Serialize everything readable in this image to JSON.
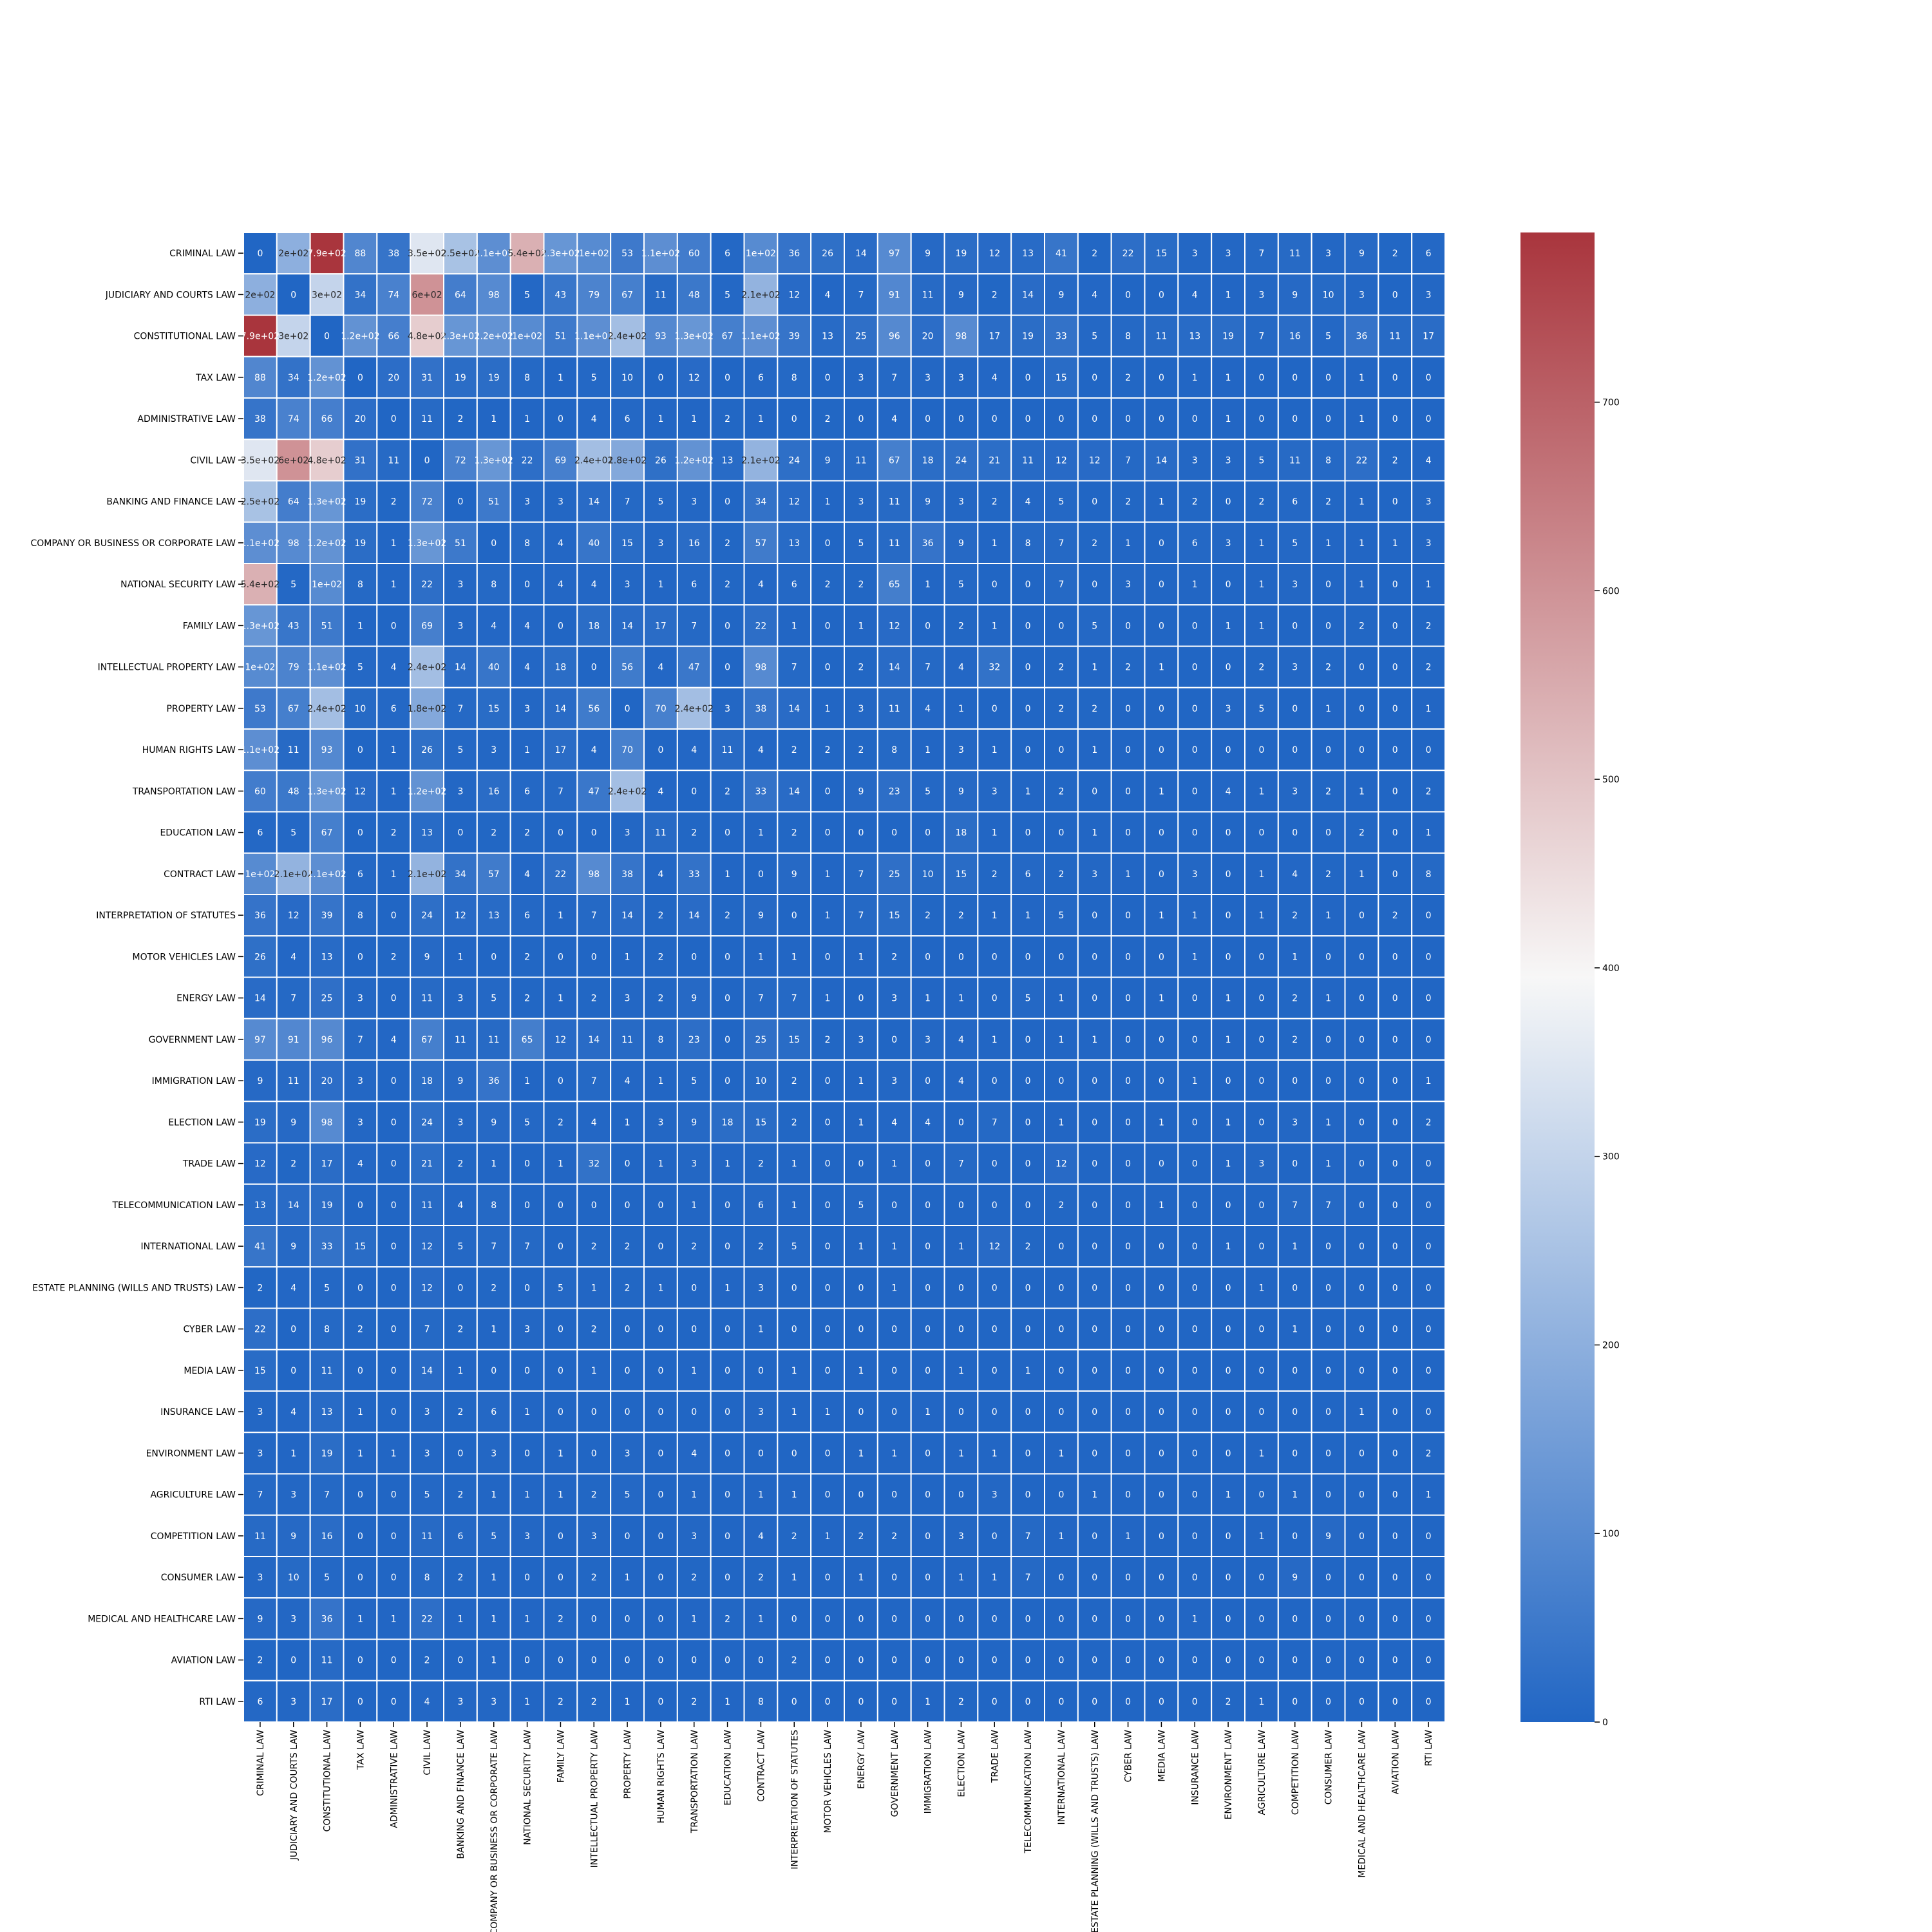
{
  "chart_data": {
    "type": "heatmap",
    "title": "",
    "xlabel": "",
    "ylabel": "",
    "labels": [
      "CRIMINAL LAW",
      "JUDICIARY AND COURTS LAW",
      "CONSTITUTIONAL LAW",
      "TAX LAW",
      "ADMINISTRATIVE LAW",
      "CIVIL LAW",
      "BANKING AND FINANCE LAW",
      "COMPANY OR BUSINESS OR CORPORATE LAW",
      "NATIONAL SECURITY LAW",
      "FAMILY LAW",
      "INTELLECTUAL PROPERTY LAW",
      "PROPERTY LAW",
      "HUMAN RIGHTS LAW",
      "TRANSPORTATION LAW",
      "EDUCATION LAW",
      "CONTRACT LAW",
      "INTERPRETATION OF STATUTES",
      "MOTOR VEHICLES LAW",
      "ENERGY LAW",
      "GOVERNMENT LAW",
      "IMMIGRATION LAW",
      "ELECTION LAW",
      "TRADE LAW",
      "TELECOMMUNICATION LAW",
      "INTERNATIONAL LAW",
      "ESTATE PLANNING (WILLS AND TRUSTS) LAW",
      "CYBER LAW",
      "MEDIA LAW",
      "INSURANCE LAW",
      "ENVIRONMENT LAW",
      "AGRICULTURE LAW",
      "COMPETITION LAW",
      "CONSUMER LAW",
      "MEDICAL AND HEALTHCARE LAW",
      "AVIATION LAW",
      "RTI LAW"
    ],
    "values": [
      [
        0,
        200,
        790,
        88,
        38,
        350,
        250,
        110,
        540,
        130,
        100,
        53,
        110,
        60,
        6,
        100,
        36,
        26,
        14,
        97,
        9,
        19,
        12,
        13,
        41,
        2,
        22,
        15,
        3,
        3,
        7,
        11,
        3,
        9,
        2,
        6
      ],
      [
        200,
        0,
        300,
        34,
        74,
        600,
        64,
        98,
        5,
        43,
        79,
        67,
        11,
        48,
        5,
        210,
        12,
        4,
        7,
        91,
        11,
        9,
        2,
        14,
        9,
        4,
        0,
        0,
        4,
        1,
        3,
        9,
        10,
        3,
        0,
        3
      ],
      [
        790,
        300,
        0,
        120,
        66,
        480,
        130,
        120,
        100,
        51,
        110,
        240,
        93,
        130,
        67,
        110,
        39,
        13,
        25,
        96,
        20,
        98,
        17,
        19,
        33,
        5,
        8,
        11,
        13,
        19,
        7,
        16,
        5,
        36,
        11,
        17
      ],
      [
        88,
        34,
        120,
        0,
        20,
        31,
        19,
        19,
        8,
        1,
        5,
        10,
        0,
        12,
        0,
        6,
        8,
        0,
        3,
        7,
        3,
        3,
        4,
        0,
        15,
        0,
        2,
        0,
        1,
        1,
        0,
        0,
        0,
        1,
        0,
        0
      ],
      [
        38,
        74,
        66,
        20,
        0,
        11,
        2,
        1,
        1,
        0,
        4,
        6,
        1,
        1,
        2,
        1,
        0,
        2,
        0,
        4,
        0,
        0,
        0,
        0,
        0,
        0,
        0,
        0,
        0,
        1,
        0,
        0,
        0,
        1,
        0,
        0
      ],
      [
        350,
        600,
        480,
        31,
        11,
        0,
        72,
        130,
        22,
        69,
        240,
        180,
        26,
        120,
        13,
        210,
        24,
        9,
        11,
        67,
        18,
        24,
        21,
        11,
        12,
        12,
        7,
        14,
        3,
        3,
        5,
        11,
        8,
        22,
        2,
        4
      ],
      [
        250,
        64,
        130,
        19,
        2,
        72,
        0,
        51,
        3,
        3,
        14,
        7,
        5,
        3,
        0,
        34,
        12,
        1,
        3,
        11,
        9,
        3,
        2,
        4,
        5,
        0,
        2,
        1,
        2,
        0,
        2,
        6,
        2,
        1,
        0,
        3
      ],
      [
        110,
        98,
        120,
        19,
        1,
        130,
        51,
        0,
        8,
        4,
        40,
        15,
        3,
        16,
        2,
        57,
        13,
        0,
        5,
        11,
        36,
        9,
        1,
        8,
        7,
        2,
        1,
        0,
        6,
        3,
        1,
        5,
        1,
        1,
        1,
        3
      ],
      [
        540,
        5,
        100,
        8,
        1,
        22,
        3,
        8,
        0,
        4,
        4,
        3,
        1,
        6,
        2,
        4,
        6,
        2,
        2,
        65,
        1,
        5,
        0,
        0,
        7,
        0,
        3,
        0,
        1,
        0,
        1,
        3,
        0,
        1,
        0,
        1
      ],
      [
        130,
        43,
        51,
        1,
        0,
        69,
        3,
        4,
        4,
        0,
        18,
        14,
        17,
        7,
        0,
        22,
        1,
        0,
        1,
        12,
        0,
        2,
        1,
        0,
        0,
        5,
        0,
        0,
        0,
        1,
        1,
        0,
        0,
        2,
        0,
        2
      ],
      [
        100,
        79,
        110,
        5,
        4,
        240,
        14,
        40,
        4,
        18,
        0,
        56,
        4,
        47,
        0,
        98,
        7,
        0,
        2,
        14,
        7,
        4,
        32,
        0,
        2,
        1,
        2,
        1,
        0,
        0,
        2,
        3,
        2,
        0,
        0,
        2
      ],
      [
        53,
        67,
        240,
        10,
        6,
        180,
        7,
        15,
        3,
        14,
        56,
        0,
        70,
        240,
        3,
        38,
        14,
        1,
        3,
        11,
        4,
        1,
        0,
        0,
        2,
        2,
        0,
        0,
        0,
        3,
        5,
        0,
        1,
        0,
        0,
        1
      ],
      [
        110,
        11,
        93,
        0,
        1,
        26,
        5,
        3,
        1,
        17,
        4,
        70,
        0,
        4,
        11,
        4,
        2,
        2,
        2,
        8,
        1,
        3,
        1,
        0,
        0,
        1,
        0,
        0,
        0,
        0,
        0,
        0,
        0,
        0,
        0,
        0
      ],
      [
        60,
        48,
        130,
        12,
        1,
        120,
        3,
        16,
        6,
        7,
        47,
        240,
        4,
        0,
        2,
        33,
        14,
        0,
        9,
        23,
        5,
        9,
        3,
        1,
        2,
        0,
        0,
        1,
        0,
        4,
        1,
        3,
        2,
        1,
        0,
        2
      ],
      [
        6,
        5,
        67,
        0,
        2,
        13,
        0,
        2,
        2,
        0,
        0,
        3,
        11,
        2,
        0,
        1,
        2,
        0,
        0,
        0,
        0,
        18,
        1,
        0,
        0,
        1,
        0,
        0,
        0,
        0,
        0,
        0,
        0,
        2,
        0,
        1
      ],
      [
        100,
        210,
        110,
        6,
        1,
        210,
        34,
        57,
        4,
        22,
        98,
        38,
        4,
        33,
        1,
        0,
        9,
        1,
        7,
        25,
        10,
        15,
        2,
        6,
        2,
        3,
        1,
        0,
        3,
        0,
        1,
        4,
        2,
        1,
        0,
        8
      ],
      [
        36,
        12,
        39,
        8,
        0,
        24,
        12,
        13,
        6,
        1,
        7,
        14,
        2,
        14,
        2,
        9,
        0,
        1,
        7,
        15,
        2,
        2,
        1,
        1,
        5,
        0,
        0,
        1,
        1,
        0,
        1,
        2,
        1,
        0,
        2,
        0
      ],
      [
        26,
        4,
        13,
        0,
        2,
        9,
        1,
        0,
        2,
        0,
        0,
        1,
        2,
        0,
        0,
        1,
        1,
        0,
        1,
        2,
        0,
        0,
        0,
        0,
        0,
        0,
        0,
        0,
        1,
        0,
        0,
        1,
        0,
        0,
        0,
        0
      ],
      [
        14,
        7,
        25,
        3,
        0,
        11,
        3,
        5,
        2,
        1,
        2,
        3,
        2,
        9,
        0,
        7,
        7,
        1,
        0,
        3,
        1,
        1,
        0,
        5,
        1,
        0,
        0,
        1,
        0,
        1,
        0,
        2,
        1,
        0,
        0,
        0
      ],
      [
        97,
        91,
        96,
        7,
        4,
        67,
        11,
        11,
        65,
        12,
        14,
        11,
        8,
        23,
        0,
        25,
        15,
        2,
        3,
        0,
        3,
        4,
        1,
        0,
        1,
        1,
        0,
        0,
        0,
        1,
        0,
        2,
        0,
        0,
        0,
        0
      ],
      [
        9,
        11,
        20,
        3,
        0,
        18,
        9,
        36,
        1,
        0,
        7,
        4,
        1,
        5,
        0,
        10,
        2,
        0,
        1,
        3,
        0,
        4,
        0,
        0,
        0,
        0,
        0,
        0,
        1,
        0,
        0,
        0,
        0,
        0,
        0,
        1
      ],
      [
        19,
        9,
        98,
        3,
        0,
        24,
        3,
        9,
        5,
        2,
        4,
        1,
        3,
        9,
        18,
        15,
        2,
        0,
        1,
        4,
        4,
        0,
        7,
        0,
        1,
        0,
        0,
        1,
        0,
        1,
        0,
        3,
        1,
        0,
        0,
        2
      ],
      [
        12,
        2,
        17,
        4,
        0,
        21,
        2,
        1,
        0,
        1,
        32,
        0,
        1,
        3,
        1,
        2,
        1,
        0,
        0,
        1,
        0,
        7,
        0,
        0,
        12,
        0,
        0,
        0,
        0,
        1,
        3,
        0,
        1,
        0,
        0,
        0
      ],
      [
        13,
        14,
        19,
        0,
        0,
        11,
        4,
        8,
        0,
        0,
        0,
        0,
        0,
        1,
        0,
        6,
        1,
        0,
        5,
        0,
        0,
        0,
        0,
        0,
        2,
        0,
        0,
        1,
        0,
        0,
        0,
        7,
        7,
        0,
        0,
        0
      ],
      [
        41,
        9,
        33,
        15,
        0,
        12,
        5,
        7,
        7,
        0,
        2,
        2,
        0,
        2,
        0,
        2,
        5,
        0,
        1,
        1,
        0,
        1,
        12,
        2,
        0,
        0,
        0,
        0,
        0,
        1,
        0,
        1,
        0,
        0,
        0,
        0
      ],
      [
        2,
        4,
        5,
        0,
        0,
        12,
        0,
        2,
        0,
        5,
        1,
        2,
        1,
        0,
        1,
        3,
        0,
        0,
        0,
        1,
        0,
        0,
        0,
        0,
        0,
        0,
        0,
        0,
        0,
        0,
        1,
        0,
        0,
        0,
        0,
        0
      ],
      [
        22,
        0,
        8,
        2,
        0,
        7,
        2,
        1,
        3,
        0,
        2,
        0,
        0,
        0,
        0,
        1,
        0,
        0,
        0,
        0,
        0,
        0,
        0,
        0,
        0,
        0,
        0,
        0,
        0,
        0,
        0,
        1,
        0,
        0,
        0,
        0
      ],
      [
        15,
        0,
        11,
        0,
        0,
        14,
        1,
        0,
        0,
        0,
        1,
        0,
        0,
        1,
        0,
        0,
        1,
        0,
        1,
        0,
        0,
        1,
        0,
        1,
        0,
        0,
        0,
        0,
        0,
        0,
        0,
        0,
        0,
        0,
        0,
        0
      ],
      [
        3,
        4,
        13,
        1,
        0,
        3,
        2,
        6,
        1,
        0,
        0,
        0,
        0,
        0,
        0,
        3,
        1,
        1,
        0,
        0,
        1,
        0,
        0,
        0,
        0,
        0,
        0,
        0,
        0,
        0,
        0,
        0,
        0,
        1,
        0,
        0
      ],
      [
        3,
        1,
        19,
        1,
        1,
        3,
        0,
        3,
        0,
        1,
        0,
        3,
        0,
        4,
        0,
        0,
        0,
        0,
        1,
        1,
        0,
        1,
        1,
        0,
        1,
        0,
        0,
        0,
        0,
        0,
        1,
        0,
        0,
        0,
        0,
        2
      ],
      [
        7,
        3,
        7,
        0,
        0,
        5,
        2,
        1,
        1,
        1,
        2,
        5,
        0,
        1,
        0,
        1,
        1,
        0,
        0,
        0,
        0,
        0,
        3,
        0,
        0,
        1,
        0,
        0,
        0,
        1,
        0,
        1,
        0,
        0,
        0,
        1
      ],
      [
        11,
        9,
        16,
        0,
        0,
        11,
        6,
        5,
        3,
        0,
        3,
        0,
        0,
        3,
        0,
        4,
        2,
        1,
        2,
        2,
        0,
        3,
        0,
        7,
        1,
        0,
        1,
        0,
        0,
        0,
        1,
        0,
        9,
        0,
        0,
        0
      ],
      [
        3,
        10,
        5,
        0,
        0,
        8,
        2,
        1,
        0,
        0,
        2,
        1,
        0,
        2,
        0,
        2,
        1,
        0,
        1,
        0,
        0,
        1,
        1,
        7,
        0,
        0,
        0,
        0,
        0,
        0,
        0,
        9,
        0,
        0,
        0,
        0
      ],
      [
        9,
        3,
        36,
        1,
        1,
        22,
        1,
        1,
        1,
        2,
        0,
        0,
        0,
        1,
        2,
        1,
        0,
        0,
        0,
        0,
        0,
        0,
        0,
        0,
        0,
        0,
        0,
        0,
        1,
        0,
        0,
        0,
        0,
        0,
        0,
        0
      ],
      [
        2,
        0,
        11,
        0,
        0,
        2,
        0,
        1,
        0,
        0,
        0,
        0,
        0,
        0,
        0,
        0,
        2,
        0,
        0,
        0,
        0,
        0,
        0,
        0,
        0,
        0,
        0,
        0,
        0,
        0,
        0,
        0,
        0,
        0,
        0,
        0
      ],
      [
        6,
        3,
        17,
        0,
        0,
        4,
        3,
        3,
        1,
        2,
        2,
        1,
        0,
        2,
        1,
        8,
        0,
        0,
        0,
        0,
        1,
        2,
        0,
        0,
        0,
        0,
        0,
        0,
        0,
        2,
        1,
        0,
        0,
        0,
        0,
        0
      ]
    ],
    "vmin": 0,
    "vmax": 790,
    "colormap": {
      "low": "#2166c4",
      "mid": "#f7f7f7",
      "high": "#a9353d"
    },
    "colorbar": {
      "ticks": [
        0,
        100,
        200,
        300,
        400,
        500,
        600,
        700
      ]
    },
    "grid_line_color": "#ffffff",
    "annotations": true
  }
}
